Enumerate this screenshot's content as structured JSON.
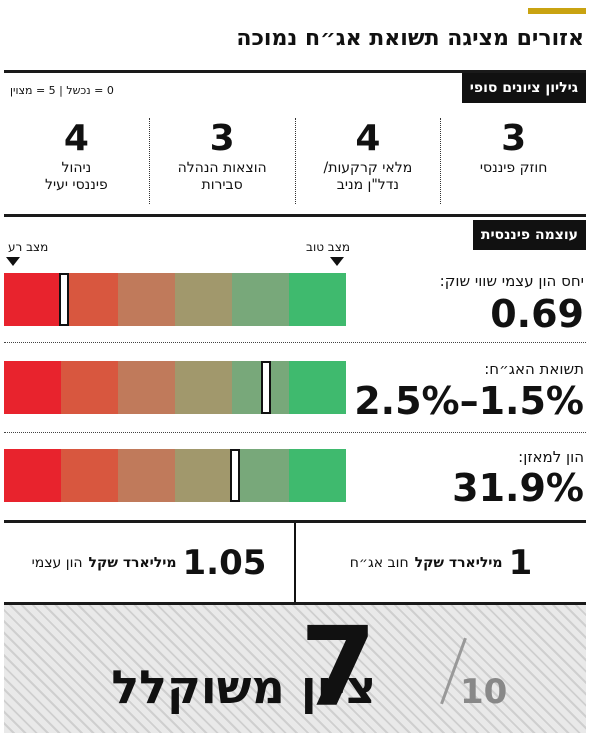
{
  "title": "אזורים מציגה תשואת אג״ח נמוכה",
  "final_scores": {
    "label": "גיליון ציונים סופי",
    "legend": "0 = נכשל | 5 = מצוין",
    "items": [
      {
        "value": "3",
        "label": "חוזק פיננסי"
      },
      {
        "value": "4",
        "label": "מלאי קרקעות/\nנדל\"ן מניב"
      },
      {
        "value": "3",
        "label": "הוצאות הנהלה\nסבירות"
      },
      {
        "value": "4",
        "label": "ניהול\nפיננסי יעיל"
      }
    ]
  },
  "financial_strength": {
    "label": "עוצמה פיננסית",
    "good_label": "מצב טוב",
    "bad_label": "מצב רע",
    "scale_colors": [
      "#e8232d",
      "#d8573f",
      "#c07a5b",
      "#a1986c",
      "#78a87a",
      "#3fba6e"
    ],
    "metrics": [
      {
        "label": "יחס הון עצמי שווי שוק:",
        "value": "0.69",
        "level": 0.16
      },
      {
        "label": "תשואת האג״ח:",
        "value": "2.5%–1.5%",
        "level": 0.75
      },
      {
        "label": "הון למאזן:",
        "value": "31.9%",
        "level": 0.66
      }
    ]
  },
  "summary": {
    "bond_debt": {
      "value": "1",
      "unit": "מיליארד שקל",
      "text": "חוב אג״ח"
    },
    "equity": {
      "value": "1.05",
      "unit": "מיליארד שקל",
      "text": "הון עצמי"
    }
  },
  "weighted_score": {
    "label": "ציון משוקלל",
    "value": "7",
    "max": "10"
  }
}
